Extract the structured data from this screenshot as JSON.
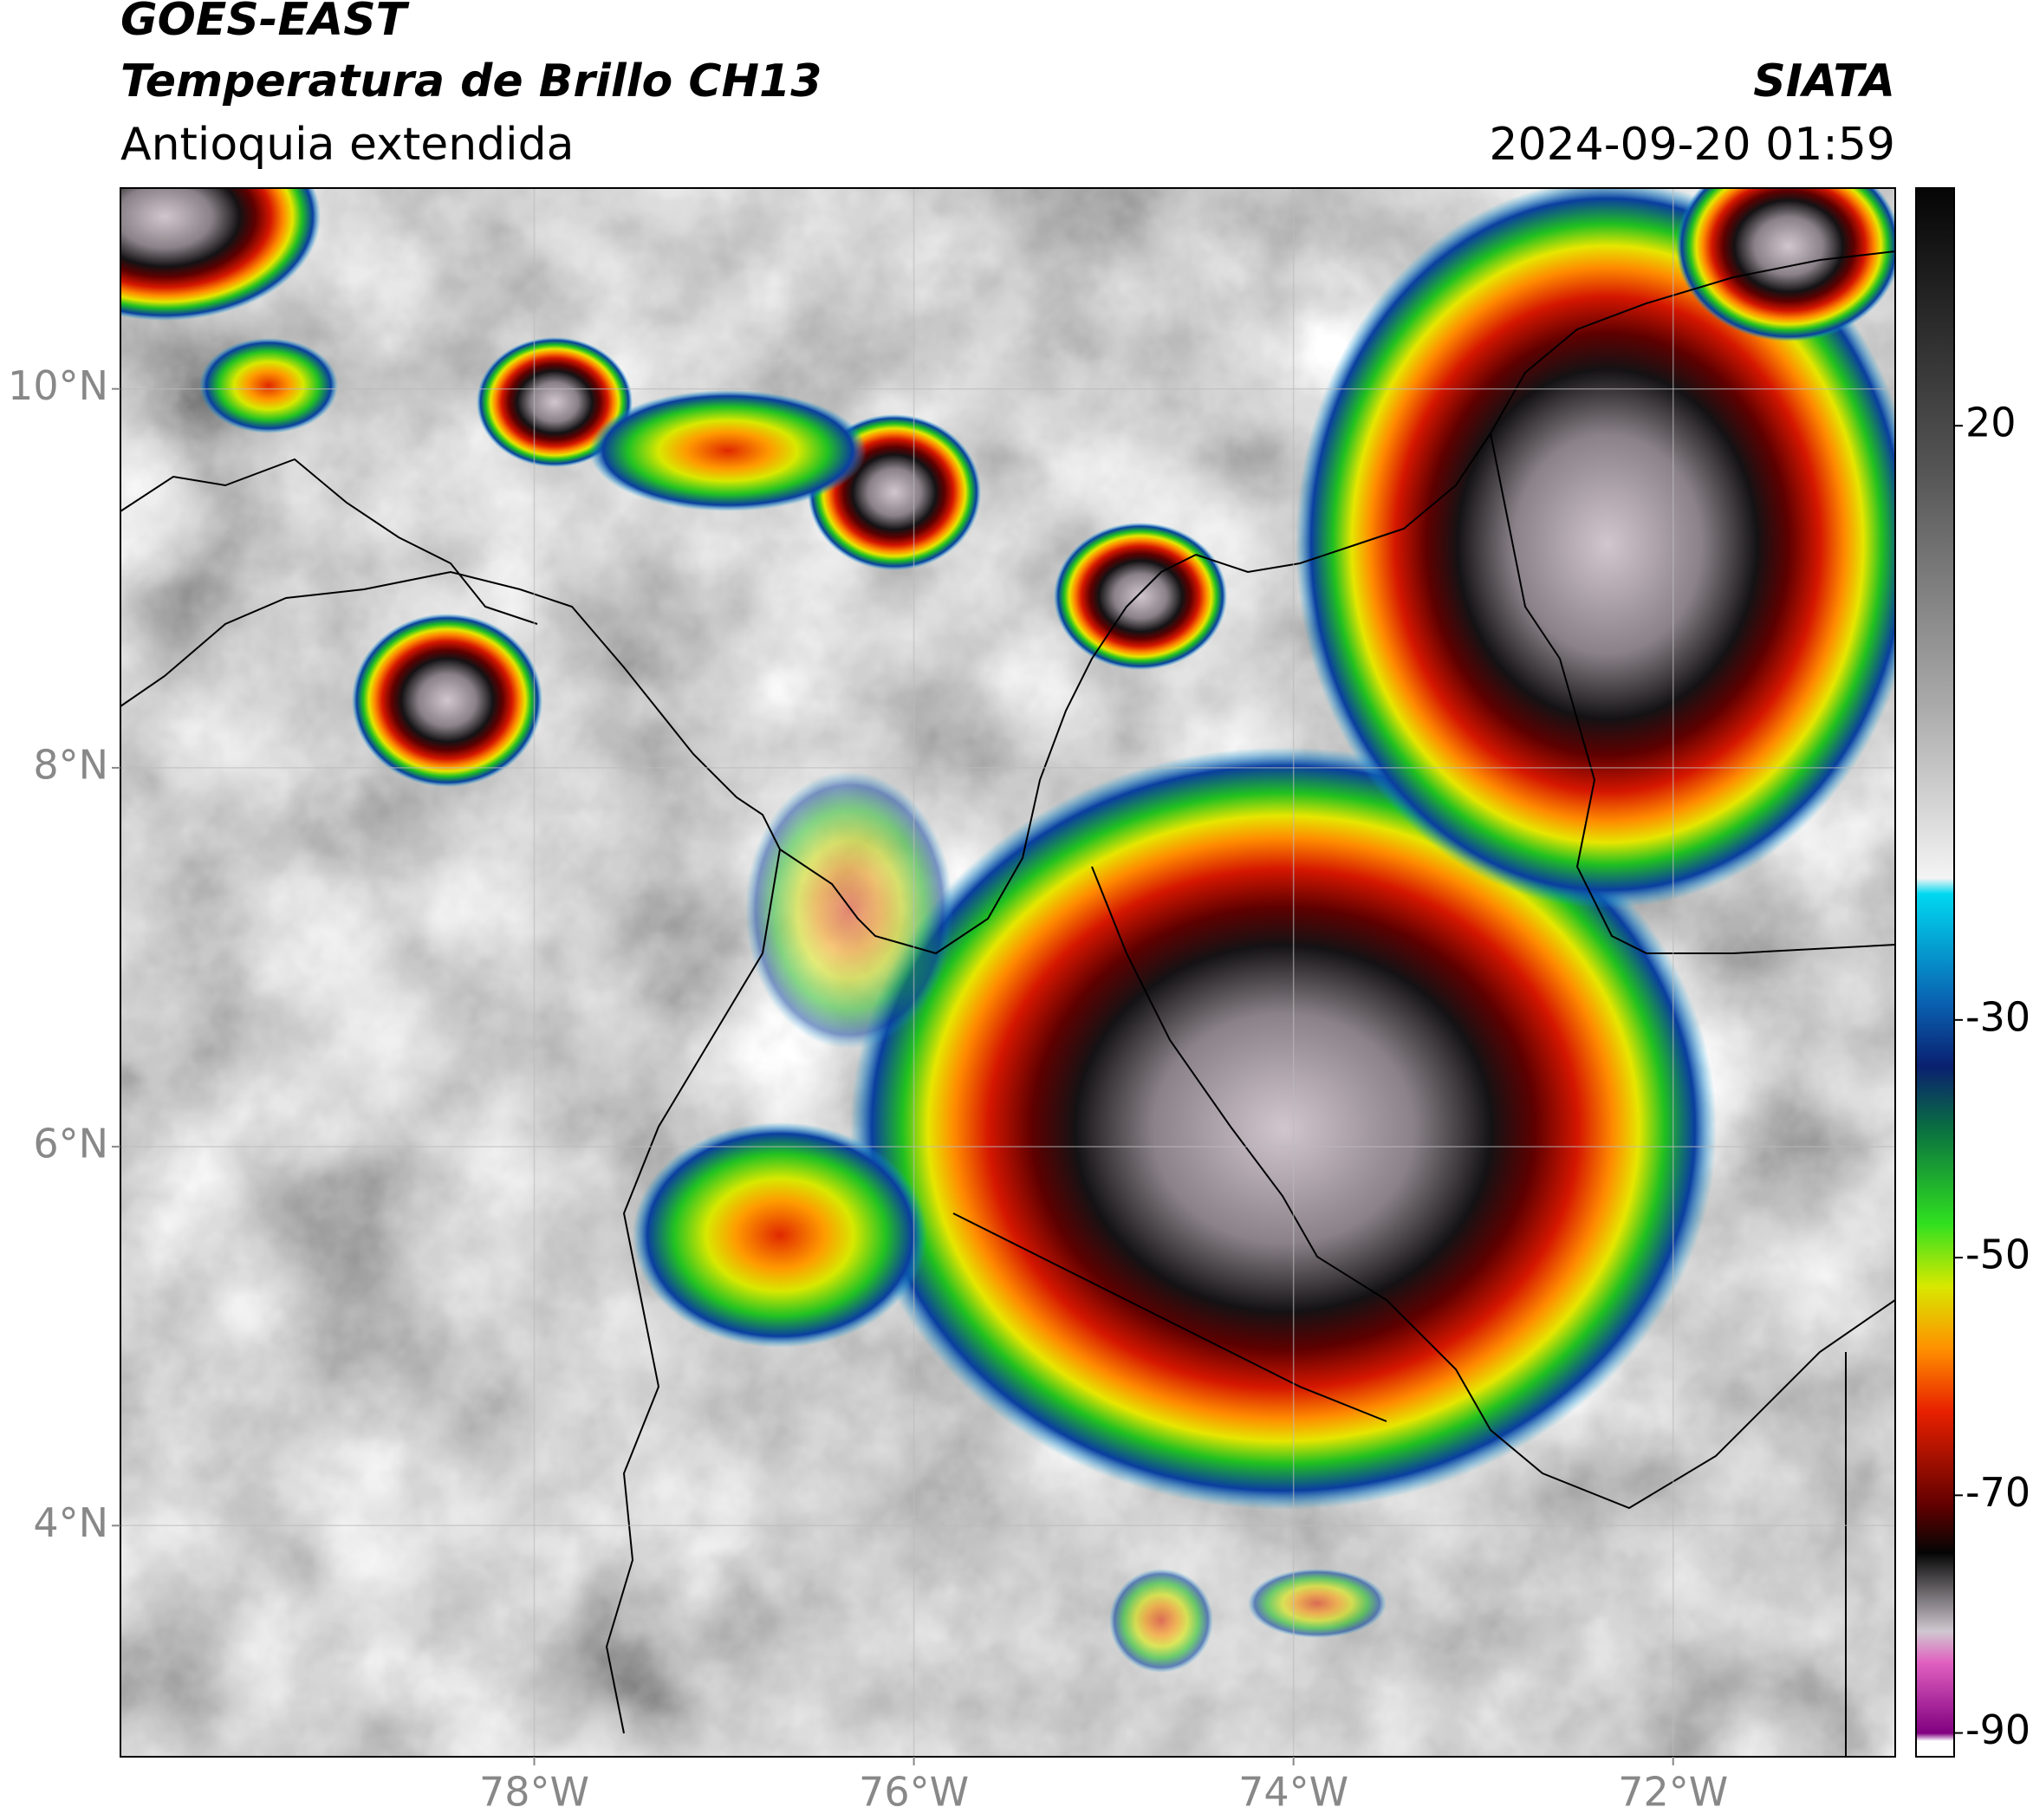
{
  "header": {
    "satellite": "GOES-EAST",
    "product": "Temperatura de Brillo CH13",
    "region": "Antioquia extendida",
    "agency": "SIATA",
    "datetime": "2024-09-20 01:59"
  },
  "map": {
    "xlim": [
      -80.18,
      -70.83
    ],
    "ylim": [
      2.78,
      11.06
    ],
    "lon_ticks": [
      {
        "value": -78,
        "label": "78°W"
      },
      {
        "value": -76,
        "label": "76°W"
      },
      {
        "value": -74,
        "label": "74°W"
      },
      {
        "value": -72,
        "label": "72°W"
      }
    ],
    "lat_ticks": [
      {
        "value": 10,
        "label": "10°N"
      },
      {
        "value": 8,
        "label": "8°N"
      },
      {
        "value": 6,
        "label": "6°N"
      },
      {
        "value": 4,
        "label": "4°N"
      }
    ]
  },
  "colorbar": {
    "range": [
      -92,
      40
    ],
    "ticks": [
      20,
      -30,
      -50,
      -70,
      -90
    ]
  }
}
